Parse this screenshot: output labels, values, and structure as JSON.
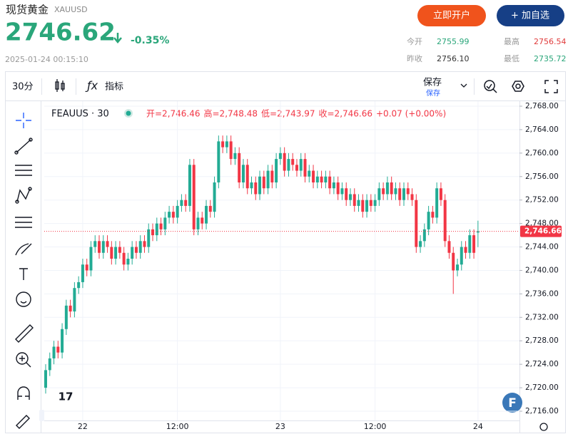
{
  "header": {
    "title": "现货黄金",
    "symbol": "XAUUSD",
    "price": "2746.62",
    "change": "-0.35%",
    "timestamp": "2025-01-24 00:15:10",
    "buttons": [
      "立即开户",
      "+ 加自选"
    ],
    "stats": [
      {
        "label": "今开",
        "value": "2755.99"
      },
      {
        "label": "最高",
        "value": "2756.54"
      },
      {
        "label": "昨收",
        "value": "2756.10"
      },
      {
        "label": "最低",
        "value": "2735.72"
      }
    ]
  },
  "toolbar": {
    "interval": "30分",
    "indicators": "指标",
    "save": "保存",
    "save_sub": "保存"
  },
  "chart_data": {
    "type": "candlestick",
    "name": "FEAUUS · 30",
    "legend": [
      "开=2,746.46",
      "高=2,748.48",
      "低=2,743.97",
      "收=2,746.66",
      "+0.07 (+0.00%)"
    ],
    "up_color": "#22ab94",
    "down_color": "#f23645",
    "grid": true,
    "categories": [
      null,
      null,
      null,
      null,
      null,
      null,
      null,
      null,
      null,
      "22",
      null,
      null,
      null,
      null,
      null,
      null,
      null,
      null,
      null,
      null,
      null,
      null,
      null,
      null,
      null,
      null,
      null,
      null,
      null,
      null,
      null,
      null,
      "12:00",
      null,
      null,
      null,
      null,
      null,
      null,
      null,
      null,
      null,
      null,
      null,
      null,
      null,
      null,
      null,
      null,
      null,
      null,
      null,
      null,
      null,
      null,
      null,
      null,
      "23",
      null,
      null,
      null,
      null,
      null,
      null,
      null,
      null,
      null,
      null,
      null,
      null,
      null,
      null,
      null,
      null,
      null,
      null,
      null,
      null,
      null,
      null,
      "12:00",
      null,
      null,
      null,
      null,
      null,
      null,
      null,
      null,
      null,
      null,
      null,
      null,
      null,
      null,
      null,
      null,
      null,
      null,
      null,
      null,
      null,
      null,
      null,
      null,
      "24"
    ],
    "open": [
      2720,
      2723,
      2725,
      2727,
      2726,
      2730,
      2734,
      2733,
      2737,
      2738,
      2741,
      2740,
      2744,
      2745,
      2743,
      2745,
      2744,
      2742,
      2744,
      2743,
      2741,
      2742,
      2744,
      2743,
      2745,
      2744,
      2747,
      2746,
      2748,
      2747,
      2749,
      2750,
      2749,
      2751,
      2752,
      2751,
      2758,
      2747,
      2749,
      2748,
      2751,
      2750,
      2755,
      2762,
      2761,
      2762,
      2759,
      2760,
      2755,
      2758,
      2754,
      2755,
      2753,
      2756,
      2754,
      2757,
      2755,
      2759,
      2760,
      2757,
      2759,
      2758,
      2757,
      2759,
      2756,
      2757,
      2755,
      2756,
      2755,
      2756,
      2754,
      2755,
      2753,
      2754,
      2752,
      2753,
      2751,
      2752,
      2750,
      2752,
      2751,
      2752,
      2754,
      2753,
      2755,
      2753,
      2754,
      2752,
      2754,
      2753,
      2752,
      2744,
      2745,
      2747,
      2750,
      2749,
      2754,
      2752,
      2745,
      2743,
      2740,
      2741,
      2744,
      2743,
      2746,
      2746.46
    ],
    "high": [
      2724,
      2726,
      2728,
      2728,
      2731,
      2735,
      2735,
      2738,
      2739,
      2742,
      2742,
      2745,
      2746,
      2746,
      2746,
      2746,
      2745,
      2745,
      2745,
      2744,
      2743,
      2745,
      2745,
      2746,
      2746,
      2748,
      2748,
      2749,
      2749,
      2750,
      2751,
      2751,
      2752,
      2753,
      2753,
      2759,
      2759,
      2750,
      2750,
      2752,
      2752,
      2756,
      2763,
      2763,
      2763,
      2763,
      2761,
      2761,
      2759,
      2759,
      2756,
      2756,
      2757,
      2757,
      2758,
      2758,
      2760,
      2761,
      2761,
      2760,
      2760,
      2759,
      2760,
      2760,
      2758,
      2758,
      2757,
      2757,
      2757,
      2757,
      2756,
      2756,
      2755,
      2755,
      2754,
      2754,
      2753,
      2753,
      2753,
      2753,
      2753,
      2755,
      2755,
      2756,
      2756,
      2755,
      2755,
      2755,
      2755,
      2754,
      2753,
      2746,
      2748,
      2751,
      2751,
      2755,
      2755,
      2753,
      2746,
      2744,
      2742,
      2745,
      2745,
      2747,
      2747,
      2748.48
    ],
    "low": [
      2719,
      2722,
      2724,
      2725,
      2725,
      2729,
      2732,
      2732,
      2736,
      2737,
      2739,
      2739,
      2743,
      2742,
      2742,
      2743,
      2741,
      2741,
      2742,
      2740,
      2740,
      2741,
      2742,
      2742,
      2743,
      2743,
      2745,
      2745,
      2746,
      2746,
      2748,
      2748,
      2748,
      2750,
      2750,
      2750,
      2746,
      2746,
      2747,
      2747,
      2749,
      2749,
      2754,
      2760,
      2760,
      2758,
      2758,
      2754,
      2754,
      2753,
      2753,
      2752,
      2752,
      2753,
      2753,
      2754,
      2754,
      2758,
      2756,
      2756,
      2757,
      2756,
      2756,
      2755,
      2755,
      2754,
      2754,
      2754,
      2754,
      2753,
      2753,
      2752,
      2752,
      2751,
      2751,
      2750,
      2750,
      2749,
      2749,
      2750,
      2750,
      2751,
      2752,
      2752,
      2752,
      2752,
      2751,
      2751,
      2752,
      2751,
      2743,
      2743,
      2744,
      2746,
      2748,
      2748,
      2751,
      2744,
      2742,
      2736,
      2739,
      2740,
      2742,
      2742,
      2742,
      2743.97
    ],
    "close": [
      2723,
      2725,
      2727,
      2726,
      2730,
      2734,
      2733,
      2737,
      2738,
      2741,
      2740,
      2744,
      2745,
      2743,
      2745,
      2744,
      2742,
      2744,
      2743,
      2741,
      2742,
      2744,
      2743,
      2745,
      2744,
      2747,
      2746,
      2748,
      2747,
      2749,
      2750,
      2749,
      2751,
      2752,
      2751,
      2758,
      2747,
      2749,
      2748,
      2751,
      2750,
      2755,
      2762,
      2761,
      2762,
      2759,
      2760,
      2755,
      2758,
      2754,
      2755,
      2753,
      2756,
      2754,
      2757,
      2755,
      2759,
      2760,
      2757,
      2759,
      2758,
      2757,
      2759,
      2756,
      2757,
      2755,
      2756,
      2755,
      2756,
      2754,
      2755,
      2753,
      2754,
      2752,
      2753,
      2751,
      2752,
      2750,
      2752,
      2751,
      2752,
      2754,
      2753,
      2755,
      2753,
      2754,
      2752,
      2754,
      2753,
      2752,
      2744,
      2745,
      2747,
      2750,
      2749,
      2754,
      2752,
      2745,
      2743,
      2740,
      2741,
      2744,
      2743,
      2746,
      2743,
      2746.66
    ],
    "last_price": {
      "value": 2746.66,
      "label": "2,746.66"
    },
    "ylim": [
      2716,
      2768
    ],
    "yticks": [
      {
        "value": 2716,
        "label": "2,716.00"
      },
      {
        "value": 2720,
        "label": "2,720.00"
      },
      {
        "value": 2724,
        "label": "2,724.00"
      },
      {
        "value": 2728,
        "label": "2,728.00"
      },
      {
        "value": 2732,
        "label": "2,732.00"
      },
      {
        "value": 2736,
        "label": "2,736.00"
      },
      {
        "value": 2740,
        "label": "2,740.00"
      },
      {
        "value": 2744,
        "label": "2,744.00"
      },
      {
        "value": 2748,
        "label": "2,748.00"
      },
      {
        "value": 2752,
        "label": "2,752.00"
      },
      {
        "value": 2756,
        "label": "2,756.00"
      },
      {
        "value": 2760,
        "label": "2,760.00"
      },
      {
        "value": 2764,
        "label": "2,764.00"
      },
      {
        "value": 2768,
        "label": "2,768.00"
      }
    ]
  }
}
